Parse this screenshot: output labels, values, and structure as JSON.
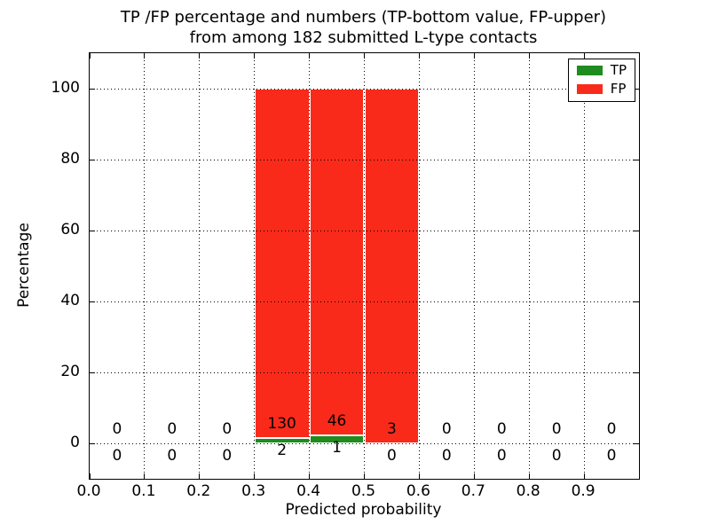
{
  "figure": {
    "title_line1": "TP /FP percentage and numbers (TP-bottom value, FP-upper)",
    "title_line2": "from among 182 submitted L-type contacts",
    "xlabel": "Predicted probability",
    "ylabel": "Percentage"
  },
  "legend": {
    "position": "upper right",
    "items": [
      {
        "label": "TP",
        "color": "#1e8c1e"
      },
      {
        "label": "FP",
        "color": "#fa2a1b"
      }
    ]
  },
  "chart_data": {
    "type": "bar",
    "stacked": true,
    "title": "TP /FP percentage and numbers (TP-bottom value, FP-upper) from among 182 submitted L-type contacts",
    "xlabel": "Predicted probability",
    "ylabel": "Percentage",
    "xlim": [
      0.0,
      1.0
    ],
    "ylim": [
      -10,
      110
    ],
    "xticks": [
      0.0,
      0.1,
      0.2,
      0.3,
      0.4,
      0.5,
      0.6,
      0.7,
      0.8,
      0.9
    ],
    "xtick_labels": [
      "0.0",
      "0.1",
      "0.2",
      "0.3",
      "0.4",
      "0.5",
      "0.6",
      "0.7",
      "0.8",
      "0.9"
    ],
    "yticks": [
      0,
      20,
      40,
      60,
      80,
      100
    ],
    "ytick_labels": [
      "0",
      "20",
      "40",
      "60",
      "80",
      "100"
    ],
    "grid": "dotted",
    "legend_position": "upper right",
    "bin_width": 0.1,
    "bin_starts": [
      0.0,
      0.1,
      0.2,
      0.3,
      0.4,
      0.5,
      0.6,
      0.7,
      0.8,
      0.9
    ],
    "total_submitted": 182,
    "series": [
      {
        "name": "TP",
        "color": "#1e8c1e",
        "counts": [
          0,
          0,
          0,
          2,
          1,
          0,
          0,
          0,
          0,
          0
        ],
        "percent": [
          0,
          0,
          0,
          1.52,
          2.13,
          0,
          0,
          0,
          0,
          0
        ]
      },
      {
        "name": "FP",
        "color": "#fa2a1b",
        "counts": [
          0,
          0,
          0,
          130,
          46,
          3,
          0,
          0,
          0,
          0
        ],
        "percent": [
          0,
          0,
          0,
          98.48,
          97.87,
          100,
          0,
          0,
          0,
          0
        ]
      }
    ]
  }
}
